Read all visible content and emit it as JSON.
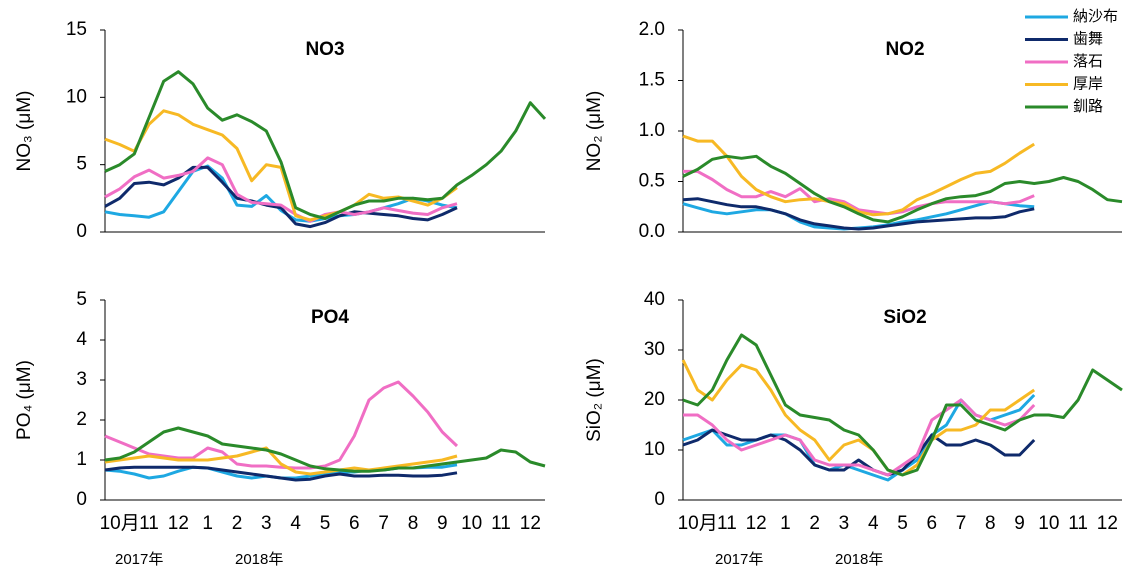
{
  "chart_data": [
    {
      "type": "line",
      "title": "NO3",
      "ylabel": "NO₃ (μM)",
      "x": [
        0,
        0.5,
        1,
        1.5,
        2,
        2.5,
        3,
        3.5,
        4,
        4.5,
        5,
        5.5,
        6,
        6.5,
        7,
        7.5,
        8,
        8.5,
        9,
        9.5,
        10,
        10.5,
        11,
        11.5,
        12,
        12.5,
        13,
        13.5,
        14,
        14.5,
        15
      ],
      "xlim": [
        0,
        15
      ],
      "ylim": [
        0,
        15
      ],
      "yticks": [
        0,
        5,
        10,
        15
      ],
      "series": [
        {
          "color": "#1ea8e2",
          "values": [
            1.5,
            1.3,
            1.2,
            1.1,
            1.5,
            3.0,
            4.5,
            4.9,
            4.0,
            2.0,
            1.9,
            2.7,
            1.6,
            0.9,
            0.8,
            1.0,
            1.2,
            1.3,
            1.5,
            1.8,
            2.1,
            2.5,
            2.3,
            2.0,
            1.8,
            null,
            null,
            null,
            null,
            null,
            null
          ]
        },
        {
          "color": "#0f2a6b",
          "values": [
            1.9,
            2.5,
            3.6,
            3.7,
            3.5,
            4.0,
            4.8,
            4.8,
            3.7,
            2.5,
            2.3,
            2.0,
            1.8,
            0.6,
            0.4,
            0.7,
            1.2,
            1.5,
            1.4,
            1.3,
            1.2,
            1.0,
            0.9,
            1.3,
            1.8,
            null,
            null,
            null,
            null,
            null,
            null
          ]
        },
        {
          "color": "#f06ec4",
          "values": [
            2.6,
            3.2,
            4.1,
            4.6,
            4.0,
            4.2,
            4.5,
            5.5,
            5.0,
            2.8,
            2.2,
            2.1,
            2.0,
            1.3,
            0.8,
            1.3,
            1.5,
            1.3,
            1.5,
            1.8,
            1.6,
            1.4,
            1.3,
            1.8,
            2.1,
            null,
            null,
            null,
            null,
            null,
            null
          ]
        },
        {
          "color": "#f7b924",
          "values": [
            6.9,
            6.5,
            6.0,
            8.0,
            9.0,
            8.7,
            8.0,
            7.6,
            7.2,
            6.2,
            3.8,
            5.0,
            4.8,
            1.2,
            0.9,
            1.2,
            1.5,
            2.0,
            2.8,
            2.5,
            2.6,
            2.3,
            2.0,
            2.5,
            3.3,
            null,
            null,
            null,
            null,
            null,
            null
          ]
        },
        {
          "color": "#2a8a2a",
          "values": [
            4.5,
            5,
            5.8,
            8.5,
            11.2,
            11.9,
            11,
            9.2,
            8.3,
            8.7,
            8.2,
            7.5,
            5.2,
            1.8,
            1.3,
            1.0,
            1.5,
            2.0,
            2.3,
            2.3,
            2.5,
            2.5,
            2.4,
            2.5,
            3.5,
            4.2,
            5.0,
            6.0,
            7.5,
            9.6,
            8.4
          ]
        }
      ]
    },
    {
      "type": "line",
      "title": "NO2",
      "ylabel": "NO₂ (μM)",
      "x": [
        0,
        0.5,
        1,
        1.5,
        2,
        2.5,
        3,
        3.5,
        4,
        4.5,
        5,
        5.5,
        6,
        6.5,
        7,
        7.5,
        8,
        8.5,
        9,
        9.5,
        10,
        10.5,
        11,
        11.5,
        12,
        12.5,
        13,
        13.5,
        14,
        14.5,
        15
      ],
      "xlim": [
        0,
        15
      ],
      "ylim": [
        0,
        2
      ],
      "yticks": [
        {
          "value": 0,
          "label": "0.0"
        },
        0.5,
        {
          "value": 1,
          "label": "1.0"
        },
        1.5,
        {
          "value": 2,
          "label": "2.0"
        }
      ],
      "series": [
        {
          "name": "納沙布",
          "color": "#1ea8e2",
          "values": [
            0.28,
            0.24,
            0.2,
            0.18,
            0.2,
            0.22,
            0.22,
            0.18,
            0.1,
            0.05,
            0.04,
            0.03,
            0.04,
            0.05,
            0.07,
            0.1,
            0.12,
            0.15,
            0.18,
            0.22,
            0.26,
            0.3,
            0.28,
            0.26,
            0.25,
            null,
            null,
            null,
            null,
            null,
            null
          ]
        },
        {
          "name": "歯舞",
          "color": "#0f2a6b",
          "values": [
            0.32,
            0.33,
            0.3,
            0.27,
            0.25,
            0.25,
            0.22,
            0.18,
            0.12,
            0.08,
            0.06,
            0.04,
            0.03,
            0.04,
            0.06,
            0.08,
            0.1,
            0.11,
            0.12,
            0.13,
            0.14,
            0.14,
            0.15,
            0.2,
            0.23,
            null,
            null,
            null,
            null,
            null,
            null
          ]
        },
        {
          "name": "落石",
          "color": "#f06ec4",
          "values": [
            0.6,
            0.6,
            0.52,
            0.42,
            0.35,
            0.35,
            0.4,
            0.35,
            0.43,
            0.3,
            0.33,
            0.3,
            0.22,
            0.2,
            0.18,
            0.2,
            0.25,
            0.28,
            0.3,
            0.3,
            0.3,
            0.3,
            0.28,
            0.3,
            0.36,
            null,
            null,
            null,
            null,
            null,
            null
          ]
        },
        {
          "name": "厚岸",
          "color": "#f7b924",
          "values": [
            0.95,
            0.9,
            0.9,
            0.75,
            0.55,
            0.42,
            0.35,
            0.3,
            0.32,
            0.33,
            0.3,
            0.28,
            0.2,
            0.17,
            0.18,
            0.22,
            0.32,
            0.38,
            0.45,
            0.52,
            0.58,
            0.6,
            0.68,
            0.78,
            0.87,
            null,
            null,
            null,
            null,
            null,
            null
          ]
        },
        {
          "name": "釧路",
          "color": "#2a8a2a",
          "values": [
            0.55,
            0.62,
            0.72,
            0.75,
            0.73,
            0.75,
            0.65,
            0.58,
            0.48,
            0.38,
            0.3,
            0.25,
            0.18,
            0.12,
            0.1,
            0.15,
            0.22,
            0.28,
            0.33,
            0.35,
            0.36,
            0.4,
            0.48,
            0.5,
            0.48,
            0.5,
            0.54,
            0.5,
            0.42,
            0.32,
            0.3
          ]
        }
      ]
    },
    {
      "type": "line",
      "title": "PO4",
      "ylabel": "PO₄ (μM)",
      "x": [
        0,
        0.5,
        1,
        1.5,
        2,
        2.5,
        3,
        3.5,
        4,
        4.5,
        5,
        5.5,
        6,
        6.5,
        7,
        7.5,
        8,
        8.5,
        9,
        9.5,
        10,
        10.5,
        11,
        11.5,
        12,
        12.5,
        13,
        13.5,
        14,
        14.5,
        15
      ],
      "xlim": [
        0,
        15
      ],
      "ylim": [
        0,
        5
      ],
      "yticks": [
        0,
        1,
        2,
        3,
        4,
        5
      ],
      "xticks": [
        {
          "value": 0.5,
          "label": "10月"
        },
        {
          "value": 1.5,
          "label": "11"
        },
        {
          "value": 2.5,
          "label": "12"
        },
        {
          "value": 3.5,
          "label": "1"
        },
        {
          "value": 4.5,
          "label": "2"
        },
        {
          "value": 5.5,
          "label": "3"
        },
        {
          "value": 6.5,
          "label": "4"
        },
        {
          "value": 7.5,
          "label": "5"
        },
        {
          "value": 8.5,
          "label": "6"
        },
        {
          "value": 9.5,
          "label": "7"
        },
        {
          "value": 10.5,
          "label": "8"
        },
        {
          "value": 11.5,
          "label": "9"
        },
        {
          "value": 12.5,
          "label": "10"
        },
        {
          "value": 13.5,
          "label": "11"
        },
        {
          "value": 14.5,
          "label": "12"
        }
      ],
      "year_labels": [
        "2017年",
        "2018年"
      ],
      "series": [
        {
          "color": "#1ea8e2",
          "values": [
            0.75,
            0.72,
            0.65,
            0.55,
            0.6,
            0.72,
            0.82,
            0.8,
            0.7,
            0.6,
            0.55,
            0.6,
            0.55,
            0.55,
            0.6,
            0.65,
            0.7,
            0.7,
            0.75,
            0.75,
            0.8,
            0.8,
            0.82,
            0.82,
            0.88,
            null,
            null,
            null,
            null,
            null,
            null
          ]
        },
        {
          "color": "#0f2a6b",
          "values": [
            0.75,
            0.8,
            0.82,
            0.82,
            0.82,
            0.82,
            0.82,
            0.8,
            0.75,
            0.7,
            0.65,
            0.6,
            0.55,
            0.5,
            0.52,
            0.6,
            0.65,
            0.6,
            0.6,
            0.62,
            0.62,
            0.6,
            0.6,
            0.62,
            0.68,
            null,
            null,
            null,
            null,
            null,
            null
          ]
        },
        {
          "color": "#f06ec4",
          "values": [
            1.6,
            1.45,
            1.3,
            1.15,
            1.1,
            1.05,
            1.05,
            1.3,
            1.2,
            0.9,
            0.85,
            0.85,
            0.82,
            0.8,
            0.8,
            0.85,
            1.0,
            1.6,
            2.5,
            2.8,
            2.95,
            2.6,
            2.2,
            1.7,
            1.35,
            null,
            null,
            null,
            null,
            null,
            null
          ]
        },
        {
          "color": "#f7b924",
          "values": [
            0.95,
            1.0,
            1.05,
            1.1,
            1.05,
            1.0,
            1.0,
            1.0,
            1.05,
            1.1,
            1.2,
            1.3,
            0.9,
            0.7,
            0.65,
            0.7,
            0.75,
            0.8,
            0.75,
            0.8,
            0.85,
            0.9,
            0.95,
            1.0,
            1.1,
            null,
            null,
            null,
            null,
            null,
            null
          ]
        },
        {
          "color": "#2a8a2a",
          "values": [
            1.0,
            1.05,
            1.2,
            1.45,
            1.7,
            1.8,
            1.7,
            1.6,
            1.4,
            1.35,
            1.3,
            1.25,
            1.15,
            1.0,
            0.85,
            0.78,
            0.75,
            0.72,
            0.72,
            0.75,
            0.8,
            0.8,
            0.85,
            0.9,
            0.95,
            1.0,
            1.05,
            1.25,
            1.2,
            0.95,
            0.85
          ]
        }
      ]
    },
    {
      "type": "line",
      "title": "SiO2",
      "ylabel": "SiO₂ (μM)",
      "x": [
        0,
        0.5,
        1,
        1.5,
        2,
        2.5,
        3,
        3.5,
        4,
        4.5,
        5,
        5.5,
        6,
        6.5,
        7,
        7.5,
        8,
        8.5,
        9,
        9.5,
        10,
        10.5,
        11,
        11.5,
        12,
        12.5,
        13,
        13.5,
        14,
        14.5,
        15
      ],
      "xlim": [
        0,
        15
      ],
      "ylim": [
        0,
        40
      ],
      "yticks": [
        0,
        10,
        20,
        30,
        40
      ],
      "xticks": [
        {
          "value": 0.5,
          "label": "10月"
        },
        {
          "value": 1.5,
          "label": "11"
        },
        {
          "value": 2.5,
          "label": "12"
        },
        {
          "value": 3.5,
          "label": "1"
        },
        {
          "value": 4.5,
          "label": "2"
        },
        {
          "value": 5.5,
          "label": "3"
        },
        {
          "value": 6.5,
          "label": "4"
        },
        {
          "value": 7.5,
          "label": "5"
        },
        {
          "value": 8.5,
          "label": "6"
        },
        {
          "value": 9.5,
          "label": "7"
        },
        {
          "value": 10.5,
          "label": "8"
        },
        {
          "value": 11.5,
          "label": "9"
        },
        {
          "value": 12.5,
          "label": "10"
        },
        {
          "value": 13.5,
          "label": "11"
        },
        {
          "value": 14.5,
          "label": "12"
        }
      ],
      "year_labels": [
        "2017年",
        "2018年"
      ],
      "series": [
        {
          "color": "#1ea8e2",
          "values": [
            12,
            13,
            14,
            11,
            11,
            12,
            13,
            13,
            12,
            7,
            6,
            7,
            6,
            5,
            4,
            6,
            8,
            13,
            15,
            20,
            17,
            16,
            17,
            18,
            21,
            null,
            null,
            null,
            null,
            null,
            null
          ]
        },
        {
          "color": "#0f2a6b",
          "values": [
            11,
            12,
            14,
            13,
            12,
            12,
            13,
            12,
            10,
            7,
            6,
            6,
            8,
            6,
            5,
            6,
            9,
            13,
            11,
            11,
            12,
            11,
            9,
            9,
            12,
            null,
            null,
            null,
            null,
            null,
            null
          ]
        },
        {
          "color": "#f06ec4",
          "values": [
            17,
            17,
            15,
            12,
            10,
            11,
            12,
            13,
            12,
            8,
            7,
            7,
            7,
            6,
            5,
            7,
            9,
            16,
            18,
            20,
            17,
            16,
            15,
            16,
            19,
            null,
            null,
            null,
            null,
            null,
            null
          ]
        },
        {
          "color": "#f7b924",
          "values": [
            28,
            22,
            20,
            24,
            27,
            26,
            22,
            17,
            14,
            12,
            8,
            11,
            12,
            10,
            6,
            5,
            7,
            12,
            14,
            14,
            15,
            18,
            18,
            20,
            22,
            null,
            null,
            null,
            null,
            null,
            null
          ]
        },
        {
          "color": "#2a8a2a",
          "values": [
            20,
            19,
            22,
            28,
            33,
            31,
            25,
            19,
            17,
            16.5,
            16,
            14,
            13,
            10,
            6,
            5,
            6,
            12,
            19,
            19,
            16,
            15,
            14,
            16,
            17,
            17,
            16.5,
            20,
            26,
            24,
            22
          ]
        }
      ]
    }
  ]
}
